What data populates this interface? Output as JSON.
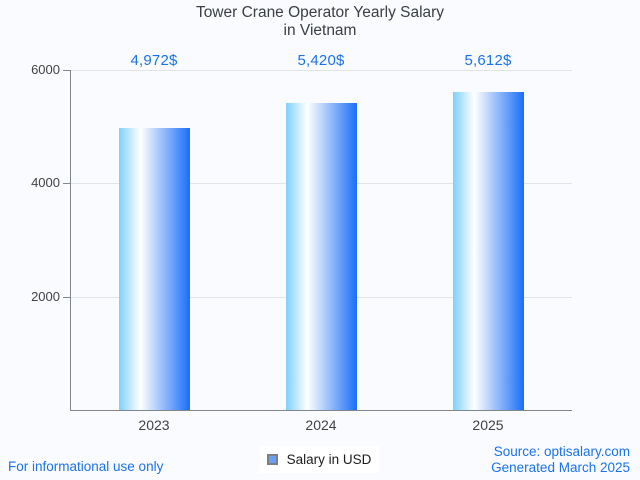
{
  "title": {
    "line1": "Tower Crane Operator Yearly Salary",
    "line2": "in Vietnam"
  },
  "chart_data": {
    "type": "bar",
    "title": "Tower Crane Operator Yearly Salary in Vietnam",
    "categories": [
      "2023",
      "2024",
      "2025"
    ],
    "series": [
      {
        "name": "Salary in USD",
        "values": [
          4972,
          5420,
          5612
        ]
      }
    ],
    "value_labels": [
      "4,972$",
      "5,420$",
      "5,612$"
    ],
    "xlabel": "",
    "ylabel": "",
    "ylim": [
      0,
      6000
    ],
    "yticks": [
      2000,
      4000,
      6000
    ],
    "grid": true,
    "legend_position": "bottom-center",
    "bar_gradient": [
      {
        "color": "#7ed0fc",
        "pos": 0
      },
      {
        "color": "#ffffff",
        "pos": 30
      },
      {
        "color": "#1a6ef8",
        "pos": 100
      }
    ]
  },
  "legend": {
    "label": "Salary in USD"
  },
  "footer": {
    "left": "For informational use only",
    "source": "Source: optisalary.com",
    "generated": "Generated March 2025"
  },
  "colors": {
    "background": "#fafbfe",
    "accent_blue": "#1a73e8",
    "value_label_blue": "#1a73e8",
    "title_gray": "#3c4043",
    "tick_gray": "#424242",
    "axis_gray": "#80868b",
    "grid_gray": "#e2e4e8",
    "legend_swatch_fill": "#68a1f3",
    "legend_swatch_border": "#7a8088"
  }
}
